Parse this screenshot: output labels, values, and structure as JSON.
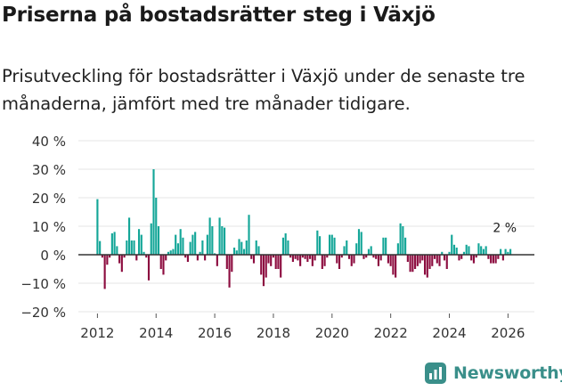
{
  "title": "Priserna på bostadsrätter steg i Växjö",
  "subtitle": "Prisutveckling för bostadsrätter i Växjö under de senaste tre månaderna, jämfört med tre månader tidigare.",
  "brand": "Newsworthy",
  "colors": {
    "positive": "#14a698",
    "negative": "#8c0c3f",
    "grid": "#e6e6e6",
    "axis": "#333333"
  },
  "chart_data": {
    "type": "bar",
    "title": "Priserna på bostadsrätter steg i Växjö",
    "xlabel": "",
    "ylabel": "",
    "ylim": [
      -20,
      40
    ],
    "yticks": [
      40,
      30,
      20,
      10,
      0,
      -10,
      -20
    ],
    "ytick_labels": [
      "40 %",
      "30 %",
      "20 %",
      "10 %",
      "0 %",
      "−10 %",
      "−20 %"
    ],
    "xticks": [
      2012,
      2014,
      2016,
      2018,
      2020,
      2022,
      2024,
      2026
    ],
    "xtick_labels": [
      "2012",
      "2014",
      "2016",
      "2018",
      "2020",
      "2022",
      "2024",
      "2026"
    ],
    "x_start": 2012.0,
    "x_step": 0.08333,
    "annotation": {
      "text": "2 %",
      "x": 2025.95,
      "y": 2
    },
    "values": [
      19.5,
      4.8,
      -1,
      -12,
      -3.5,
      -1,
      7.5,
      8,
      3,
      -3,
      -6,
      -1,
      5,
      13,
      5,
      5,
      -2,
      9,
      7,
      1,
      -1,
      -9,
      11,
      30,
      20,
      10,
      -5,
      -7,
      -2,
      1,
      1.5,
      2,
      7,
      4,
      9,
      6,
      -1,
      -2.5,
      4.5,
      7,
      8,
      -2,
      1,
      5,
      -2,
      7,
      13,
      10,
      0.5,
      -4,
      13,
      10,
      9.5,
      -5,
      -11.5,
      -6,
      2.5,
      1.5,
      5.5,
      4.5,
      2,
      5,
      14,
      -1.5,
      -3,
      5,
      3,
      -7,
      -11,
      -8,
      -3,
      -4,
      -1,
      -5,
      -5,
      -8,
      6,
      7.5,
      5,
      -1,
      -2.5,
      -1.5,
      -2,
      -4,
      -1,
      -1.5,
      -2.5,
      -1.5,
      -4,
      -2,
      8.5,
      6.5,
      -5,
      -4,
      -1,
      7,
      7,
      6,
      -3,
      -5,
      -1,
      3,
      5,
      -1.5,
      -4,
      -3,
      4,
      9,
      8,
      -1.5,
      -1,
      2,
      3,
      -1,
      -1.5,
      -4,
      -2,
      6,
      6,
      -3,
      -4,
      -7,
      -8,
      4,
      11,
      10,
      6,
      -2.5,
      -6,
      -6,
      -5,
      -4,
      -3,
      -2,
      -7,
      -8,
      -5,
      -4,
      -1.5,
      -3,
      -4,
      1,
      -2,
      -5,
      1,
      7,
      3.5,
      2.5,
      -2,
      -1.5,
      1,
      3.5,
      3,
      -2,
      -3,
      -1,
      4,
      3,
      2,
      3,
      -1.5,
      -3,
      -3,
      -3,
      -1.5,
      2,
      -2,
      2,
      1,
      2
    ]
  }
}
